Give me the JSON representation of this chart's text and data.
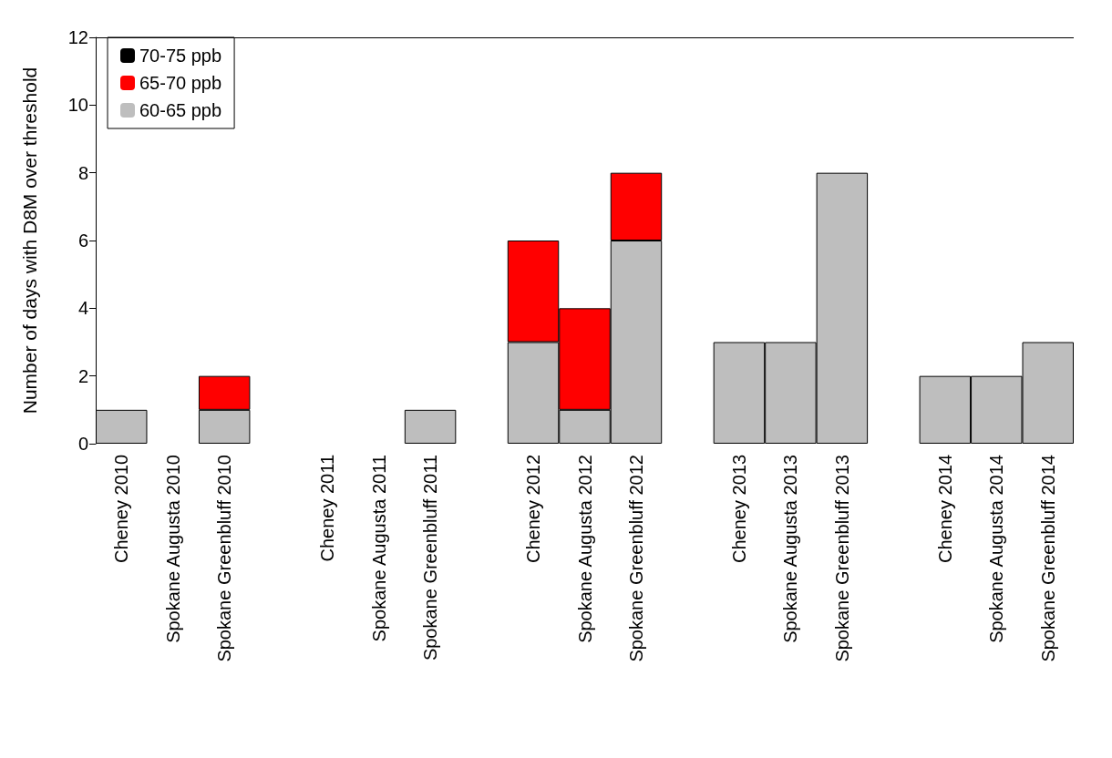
{
  "chart_data": {
    "type": "bar",
    "stacked": true,
    "ylabel": "Number of days with D8M over threshold",
    "categories": [
      "Cheney 2010",
      "Spokane Augusta 2010",
      "Spokane Greenbluff 2010",
      null,
      "Cheney 2011",
      "Spokane Augusta 2011",
      "Spokane Greenbluff 2011",
      null,
      "Cheney 2012",
      "Spokane Augusta 2012",
      "Spokane Greenbluff 2012",
      null,
      "Cheney 2013",
      "Spokane Augusta 2013",
      "Spokane Greenbluff 2013",
      null,
      "Cheney 2014",
      "Spokane Augusta 2014",
      "Spokane Greenbluff 2014"
    ],
    "series": [
      {
        "name": "60-65 ppb",
        "color": "#bebebe",
        "values": [
          1,
          0,
          1,
          null,
          0,
          0,
          1,
          null,
          3,
          1,
          6,
          null,
          3,
          3,
          8,
          null,
          2,
          2,
          3
        ]
      },
      {
        "name": "65-70 ppb",
        "color": "#ff0000",
        "values": [
          0,
          0,
          1,
          null,
          0,
          0,
          0,
          null,
          3,
          3,
          2,
          null,
          0,
          0,
          0,
          null,
          0,
          0,
          0
        ]
      },
      {
        "name": "70-75 ppb",
        "color": "#000000",
        "values": [
          0,
          0,
          0,
          null,
          0,
          0,
          0,
          null,
          0,
          0,
          0,
          null,
          0,
          0,
          0,
          null,
          0,
          0,
          0
        ]
      }
    ],
    "ylim": [
      0,
      12
    ],
    "yticks": [
      0,
      2,
      4,
      6,
      8,
      10,
      12
    ],
    "grid": false,
    "legend": "top left",
    "ref_lines": [
      {
        "axis": "y",
        "value": 12,
        "color": "#000000"
      }
    ]
  }
}
